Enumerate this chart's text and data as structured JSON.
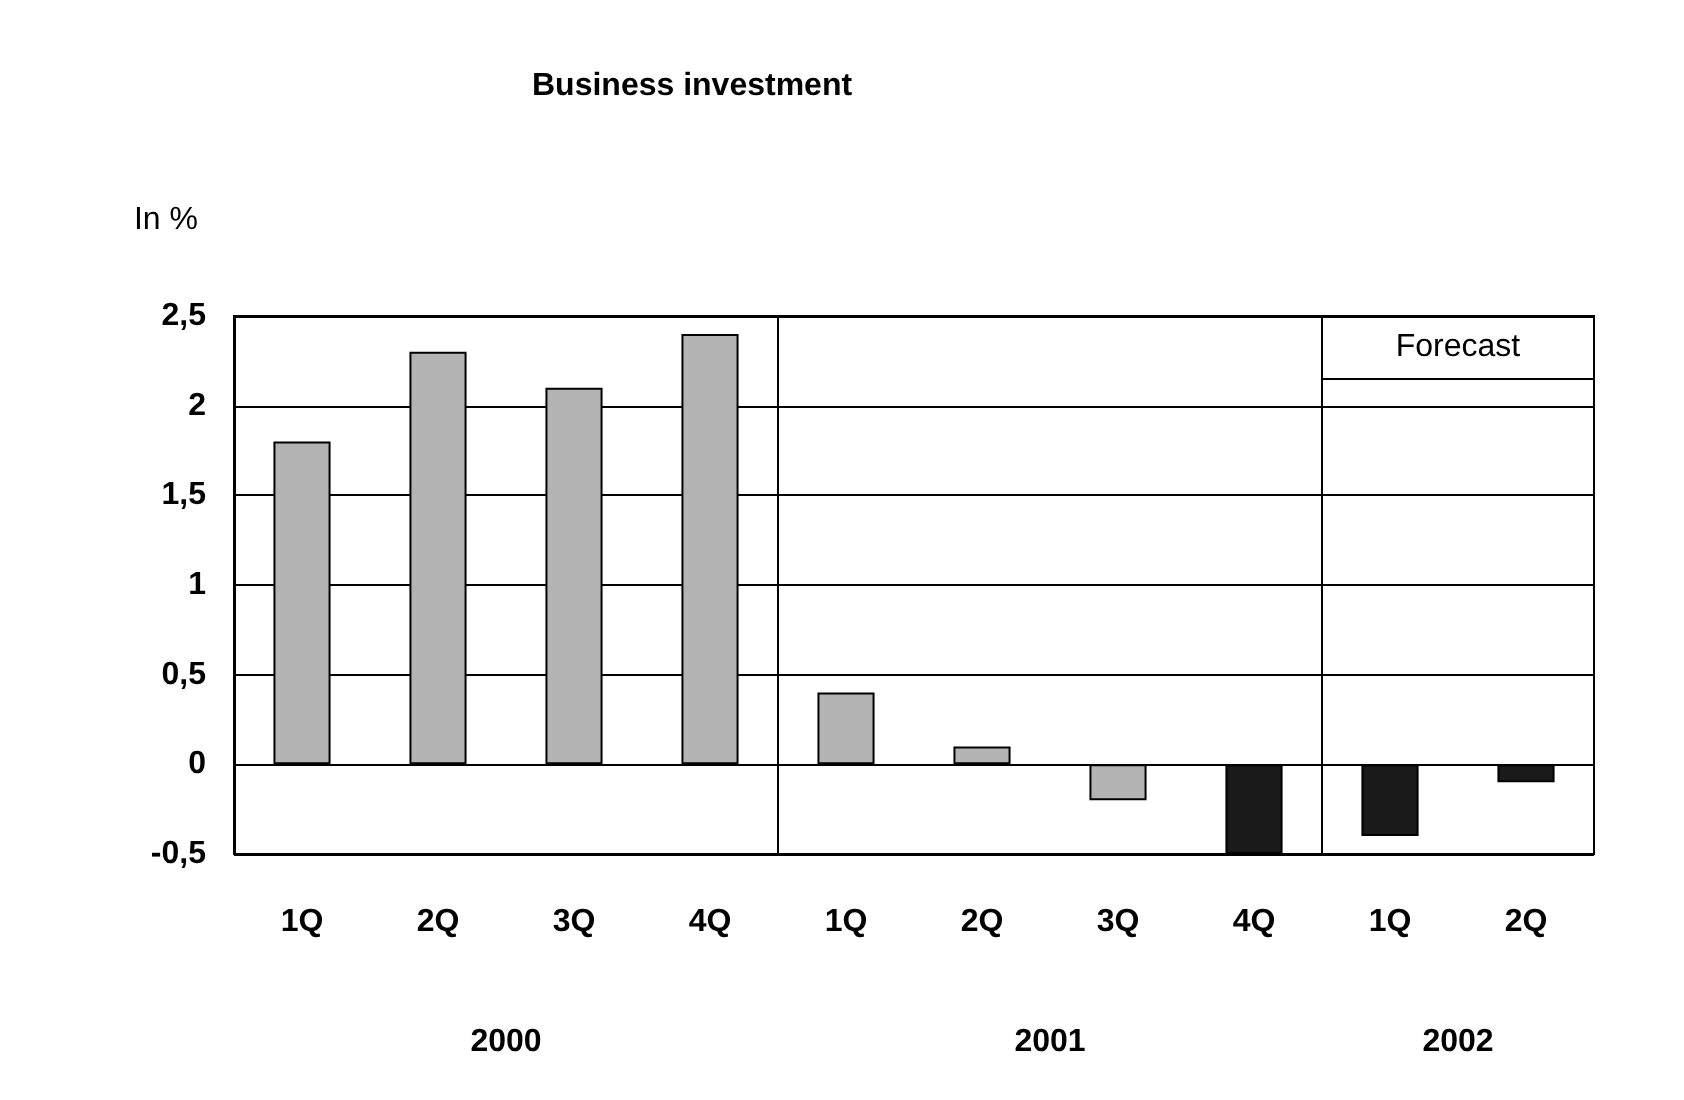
{
  "chart_data": {
    "type": "bar",
    "title": "Business investment",
    "ylabel": "In %",
    "categories": [
      "1Q",
      "2Q",
      "3Q",
      "4Q",
      "1Q",
      "2Q",
      "3Q",
      "4Q",
      "1Q",
      "2Q"
    ],
    "values": [
      1.8,
      2.3,
      2.1,
      2.4,
      0.4,
      0.1,
      -0.2,
      -0.5,
      -0.4,
      -0.1
    ],
    "colors": [
      "#b3b3b3",
      "#b3b3b3",
      "#b3b3b3",
      "#b3b3b3",
      "#b3b3b3",
      "#b3b3b3",
      "#b3b3b3",
      "#1a1a1a",
      "#1a1a1a",
      "#1a1a1a"
    ],
    "ylim": [
      -0.5,
      2.5
    ],
    "yticks": [
      {
        "value": -0.5,
        "label": "-0,5"
      },
      {
        "value": 0,
        "label": "0"
      },
      {
        "value": 0.5,
        "label": "0,5"
      },
      {
        "value": 1,
        "label": "1"
      },
      {
        "value": 1.5,
        "label": "1,5"
      },
      {
        "value": 2,
        "label": "2"
      },
      {
        "value": 2.5,
        "label": "2,5"
      }
    ],
    "grid": "y",
    "annotations": [
      "2000",
      "2001",
      "2002",
      "Forecast"
    ]
  }
}
